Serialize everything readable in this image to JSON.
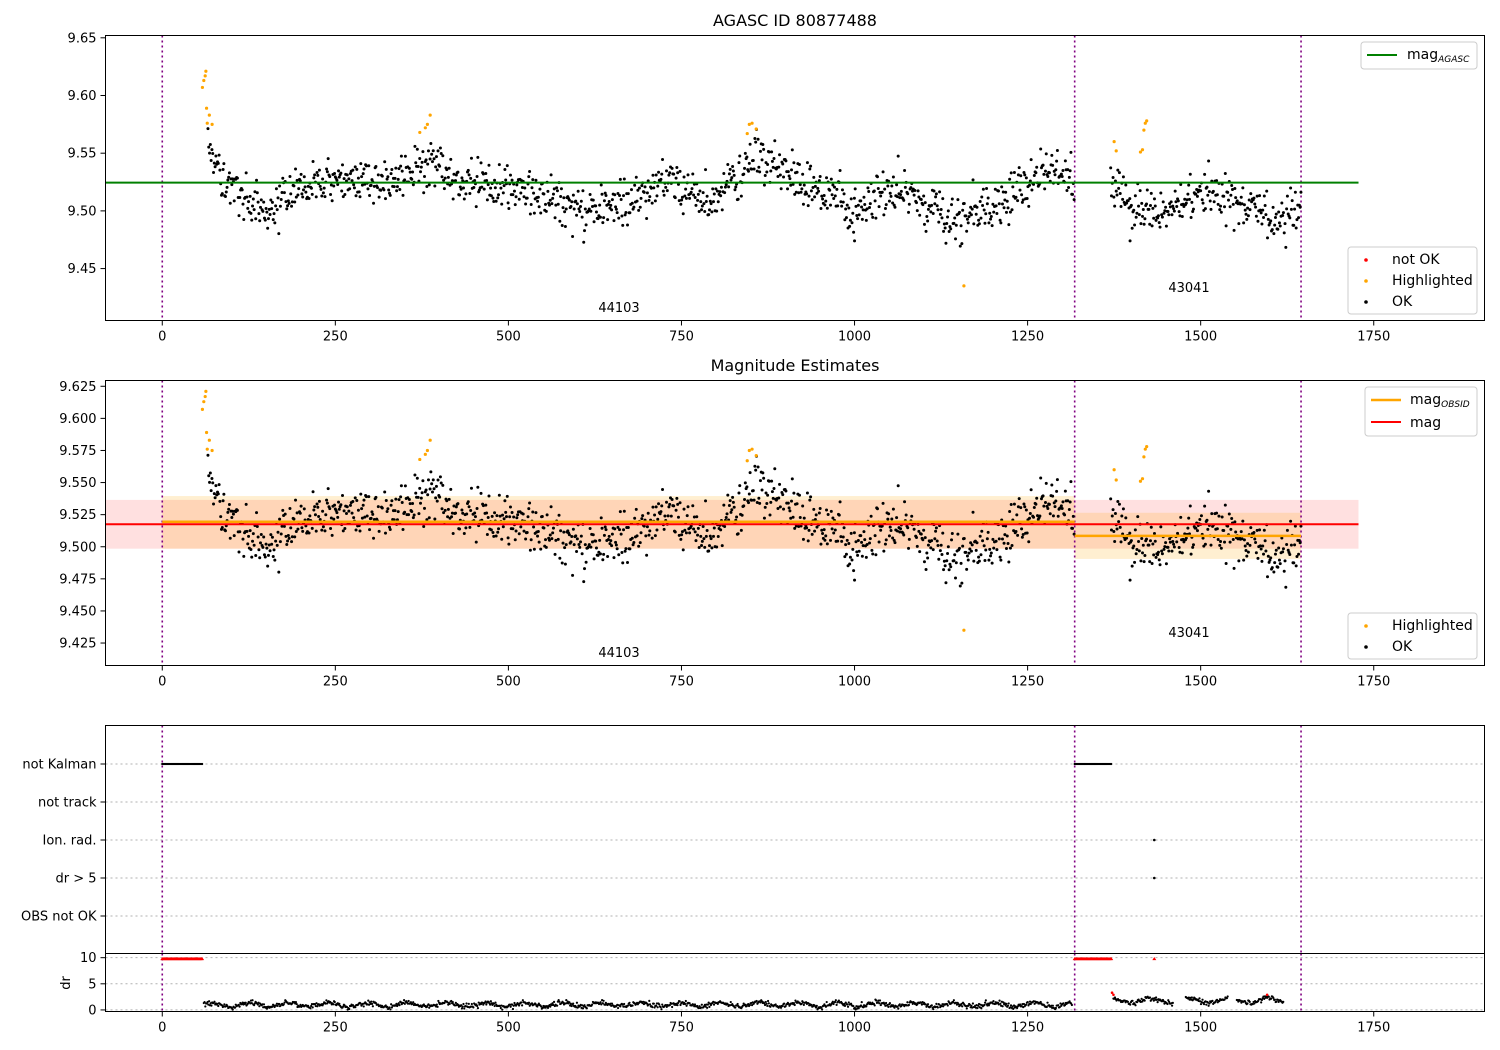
{
  "chart_data": [
    {
      "panel": "top",
      "type": "scatter",
      "title": "AGASC ID 80877488",
      "xlim": [
        -82,
        1910
      ],
      "ylim": [
        9.405,
        9.652
      ],
      "xticks": [
        0,
        250,
        500,
        750,
        1000,
        1250,
        1500,
        1750
      ],
      "yticks": [
        9.45,
        9.5,
        9.55,
        9.6,
        9.65
      ],
      "ytick_labels": [
        "9.45",
        "9.50",
        "9.55",
        "9.60",
        "9.65"
      ],
      "obs_boundaries": [
        0,
        1318,
        1645
      ],
      "obs_labels": [
        {
          "text": "44103",
          "x": 658,
          "y": 9.415
        },
        {
          "text": "43041",
          "x": 1487,
          "y": 9.432
        }
      ],
      "mag_agasc": {
        "value": 9.5245,
        "x_range": [
          -82,
          1728
        ],
        "color": "#008000"
      },
      "legend_top": [
        {
          "label": "mag",
          "sub": "AGASC",
          "color": "#008000"
        }
      ],
      "legend_bottom": [
        {
          "label": "not OK",
          "color": "#ff0000"
        },
        {
          "label": "Highlighted",
          "color": "#ffa500"
        },
        {
          "label": "OK",
          "color": "#000000"
        }
      ],
      "highlighted_points": [
        [
          58,
          9.607
        ],
        [
          60,
          9.613
        ],
        [
          62,
          9.617
        ],
        [
          63,
          9.621
        ],
        [
          64,
          9.589
        ],
        [
          65,
          9.576
        ],
        [
          68,
          9.583
        ],
        [
          72,
          9.575
        ],
        [
          372,
          9.568
        ],
        [
          380,
          9.572
        ],
        [
          383,
          9.575
        ],
        [
          387,
          9.583
        ],
        [
          845,
          9.567
        ],
        [
          848,
          9.575
        ],
        [
          852,
          9.576
        ],
        [
          858,
          9.571
        ],
        [
          1158,
          9.435
        ],
        [
          1375,
          9.56
        ],
        [
          1378,
          9.552
        ],
        [
          1413,
          9.551
        ],
        [
          1416,
          9.553
        ],
        [
          1418,
          9.57
        ],
        [
          1420,
          9.576
        ],
        [
          1422,
          9.578
        ]
      ],
      "ok_series": {
        "segments": [
          {
            "x": [
              66,
              85,
              110,
              150,
              200,
              260,
              330,
              390,
              430,
              500,
              560,
              625,
              680,
              735,
              790,
              860,
              930,
              1000,
              1070,
              1130,
              1200,
              1245,
              1285,
              1318
            ],
            "y": [
              9.56,
              9.53,
              9.515,
              9.495,
              9.52,
              9.53,
              9.522,
              9.542,
              9.525,
              9.52,
              9.512,
              9.495,
              9.512,
              9.53,
              9.505,
              9.545,
              9.525,
              9.5,
              9.522,
              9.495,
              9.5,
              9.522,
              9.537,
              9.525
            ]
          },
          {
            "x": [
              1370,
              1400,
              1440,
              1500,
              1550,
              1600,
              1645
            ],
            "y": [
              9.527,
              9.505,
              9.5,
              9.515,
              9.51,
              9.495,
              9.5
            ]
          }
        ],
        "scatter_sd": 0.01,
        "outlier_ok": [
          [
            1398,
            9.474
          ],
          [
            1000,
            9.474
          ]
        ]
      }
    },
    {
      "panel": "middle",
      "type": "scatter",
      "title": "Magnitude Estimates",
      "xlim": [
        -82,
        1910
      ],
      "ylim": [
        9.4075,
        9.6295
      ],
      "xticks": [
        0,
        250,
        500,
        750,
        1000,
        1250,
        1500,
        1750
      ],
      "yticks": [
        9.425,
        9.45,
        9.475,
        9.5,
        9.525,
        9.55,
        9.575,
        9.6,
        9.625
      ],
      "ytick_labels": [
        "9.425",
        "9.450",
        "9.475",
        "9.500",
        "9.525",
        "9.550",
        "9.575",
        "9.600",
        "9.625"
      ],
      "obs_boundaries": [
        0,
        1318,
        1645
      ],
      "obs_labels": [
        {
          "text": "44103",
          "x": 658,
          "y": 9.418
        },
        {
          "text": "43041",
          "x": 1487,
          "y": 9.431
        }
      ],
      "mag": {
        "value": 9.5175,
        "band": [
          9.4985,
          9.5365
        ],
        "x_range": [
          -82,
          1728
        ],
        "color": "#ff0000"
      },
      "mag_obsid": [
        {
          "x_range": [
            0,
            1318
          ],
          "value": 9.5195,
          "band": [
            9.4985,
            9.5395
          ]
        },
        {
          "x_range": [
            1318,
            1645
          ],
          "value": 9.5085,
          "band": [
            9.4905,
            9.5265
          ]
        }
      ],
      "legend_top": [
        {
          "label": "mag",
          "sub": "OBSID",
          "color": "#ffa500"
        },
        {
          "label": "mag",
          "sub": "",
          "color": "#ff0000"
        }
      ],
      "legend_bottom": [
        {
          "label": "Highlighted",
          "color": "#ffa500"
        },
        {
          "label": "OK",
          "color": "#000000"
        }
      ]
    },
    {
      "panel": "flags",
      "type": "scatter",
      "categories": [
        "not Kalman",
        "not track",
        "Ion. rad.",
        "dr > 5",
        "OBS not OK"
      ],
      "not_kalman_ranges": [
        [
          0,
          58
        ],
        [
          1318,
          1372
        ]
      ],
      "ion_rad_points": [
        1433
      ],
      "dr_gt_5_points": [
        1433
      ]
    },
    {
      "panel": "dr",
      "type": "line",
      "ylabel": "dr",
      "ylim": [
        -0.3,
        10.8
      ],
      "yticks": [
        0,
        5,
        10
      ],
      "ytick_labels": [
        "0",
        "5",
        "10"
      ],
      "xticks": [
        0,
        250,
        500,
        750,
        1000,
        1250,
        1500,
        1750
      ],
      "red_top_ranges": [
        [
          0,
          58
        ],
        [
          1318,
          1372
        ]
      ],
      "red_top_extra": [
        1433
      ],
      "red_points": [
        [
          1372,
          3.3
        ],
        [
          1374,
          2.9
        ],
        [
          1596,
          2.9
        ]
      ],
      "dr_segments": [
        {
          "x": [
            60,
            1315
          ],
          "base": 1.0,
          "amp": 0.5
        },
        {
          "x": [
            1374,
            1620
          ],
          "base": 1.8,
          "amp": 0.6
        }
      ]
    }
  ]
}
